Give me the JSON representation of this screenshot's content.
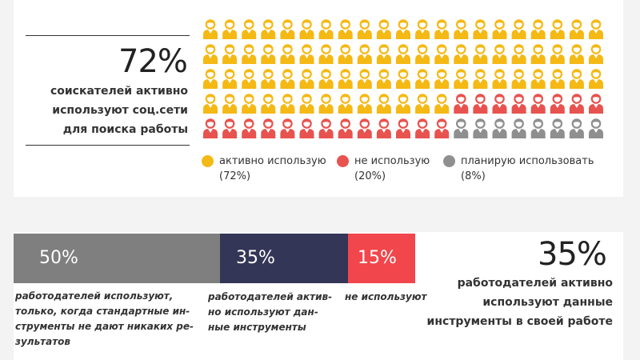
{
  "top": {
    "percent": "72%",
    "caption_lines": [
      "соискателей активно",
      "используют соц.сети",
      "для поиска работы"
    ]
  },
  "bottom": {
    "percent": "35%",
    "caption_lines": [
      "работодателей активно",
      "используют данные",
      "инструменты в своей работе"
    ]
  },
  "colors": {
    "active": "#f5b915",
    "not_using": "#e8534f",
    "planning": "#8f8f8f",
    "bar_gray": "#7f7f7f",
    "bar_navy": "#343657",
    "bar_red": "#f1464c"
  },
  "chart_data": [
    {
      "type": "pictogram",
      "grid": {
        "rows": 5,
        "cols": 21
      },
      "legend": [
        {
          "label": "активно использую",
          "value_label": "(72%)",
          "value": 72,
          "color": "#f5b915"
        },
        {
          "label": "не использую",
          "value_label": "(20%)",
          "value": 20,
          "color": "#e8534f"
        },
        {
          "label": "планирую использовать",
          "value_label": "(8%)",
          "value": 8,
          "color": "#8f8f8f"
        }
      ]
    },
    {
      "type": "stacked-bar",
      "segments": [
        {
          "value": 50,
          "label": "50%",
          "caption_lines": [
            "работодателей используют,",
            "только, когда стандартные ин-",
            "струменты не дают никаких ре-",
            "зультатов"
          ],
          "color": "#7f7f7f"
        },
        {
          "value": 35,
          "label": "35%",
          "caption_lines": [
            "работодателей актив-",
            "но используют дан-",
            "ные инструменты"
          ],
          "color": "#343657"
        },
        {
          "value": 15,
          "label": "15%",
          "caption_lines": [
            "не используют"
          ],
          "color": "#f1464c"
        }
      ]
    }
  ]
}
